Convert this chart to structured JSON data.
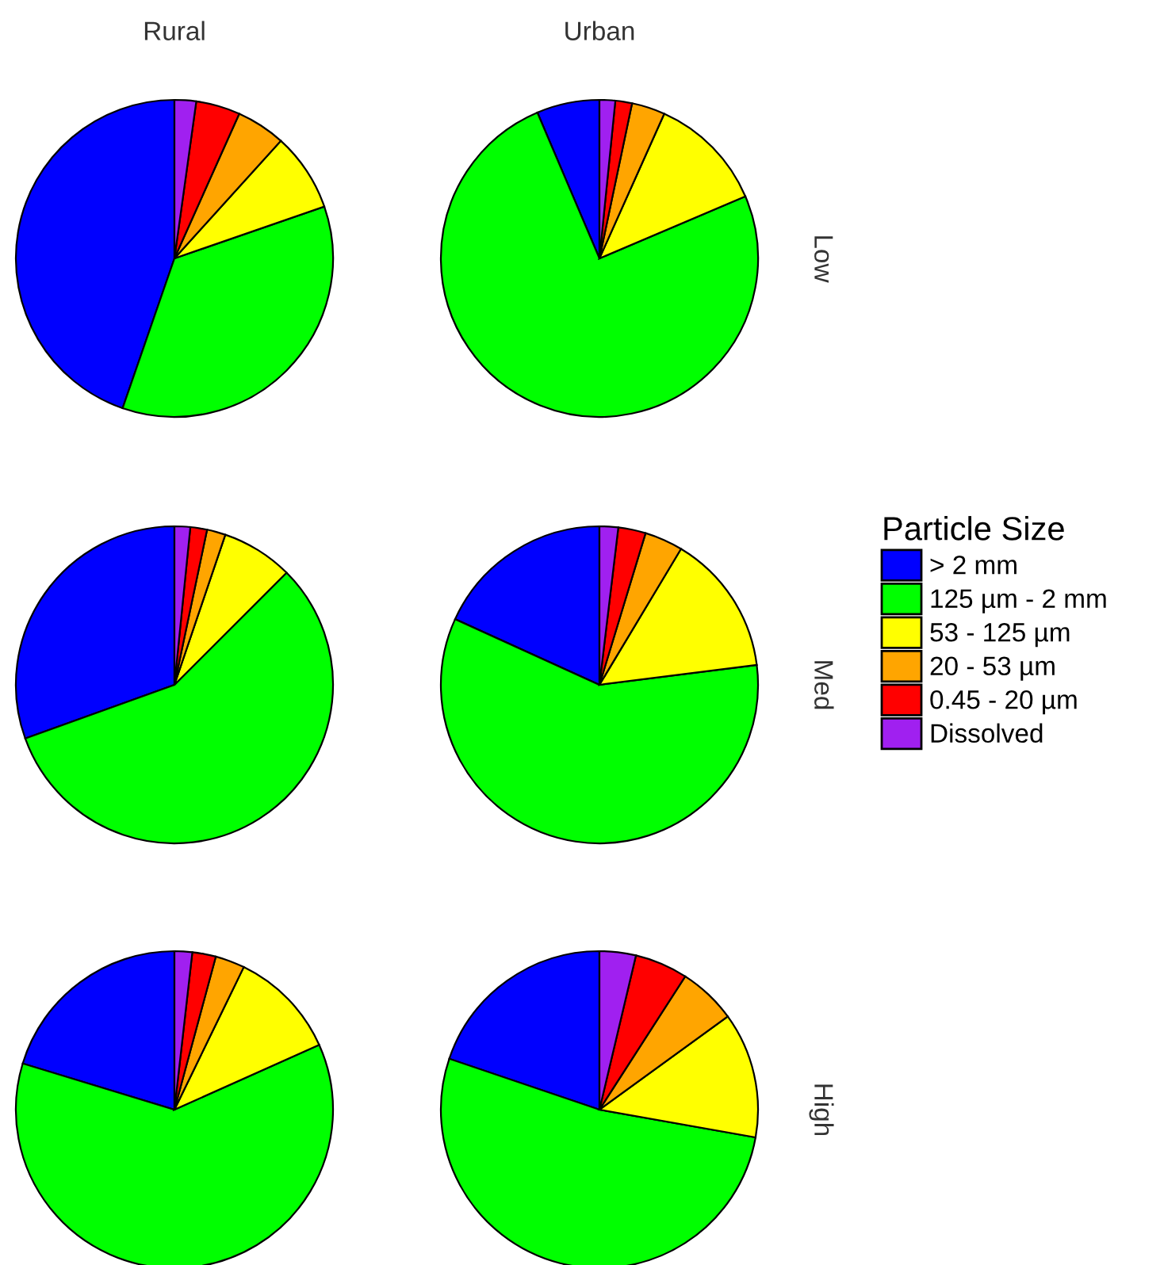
{
  "chart_data": [
    {
      "type": "pie",
      "title": "Rural",
      "legend_title": "Particle Size",
      "categories": [
        "> 2 mm",
        "125 µm - 2 mm",
        "53 - 125 µm",
        "20 - 53 µm",
        "0.45 - 20 µm",
        "Dissolved"
      ],
      "values": [
        44.7,
        35.6,
        8.0,
        5.0,
        4.5,
        2.2
      ],
      "colors": [
        "#0000ff",
        "#00ff00",
        "#ffff00",
        "#ffa500",
        "#ff0000",
        "#a020f0"
      ],
      "legend": "right"
    },
    {
      "type": "pie",
      "title": "Urban",
      "annotations": [
        "Low"
      ],
      "values": [
        6.4,
        75.0,
        11.9,
        3.4,
        1.7,
        1.6
      ],
      "colors": [
        "#0000ff",
        "#00ff00",
        "#ffff00",
        "#ffa500",
        "#ff0000",
        "#a020f0"
      ]
    },
    {
      "type": "pie",
      "values": [
        30.5,
        57.0,
        7.3,
        1.9,
        1.7,
        1.6
      ],
      "colors": [
        "#0000ff",
        "#00ff00",
        "#ffff00",
        "#ffa500",
        "#ff0000",
        "#a020f0"
      ]
    },
    {
      "type": "pie",
      "annotations": [
        "Med"
      ],
      "values": [
        18.2,
        58.8,
        14.4,
        3.9,
        2.8,
        1.9
      ],
      "colors": [
        "#0000ff",
        "#00ff00",
        "#ffff00",
        "#ffa500",
        "#ff0000",
        "#a020f0"
      ]
    },
    {
      "type": "pie",
      "values": [
        20.3,
        61.4,
        11.1,
        3.0,
        2.4,
        1.8
      ],
      "colors": [
        "#0000ff",
        "#00ff00",
        "#ffff00",
        "#ffa500",
        "#ff0000",
        "#a020f0"
      ]
    },
    {
      "type": "pie",
      "annotations": [
        "High"
      ],
      "values": [
        19.8,
        52.4,
        12.8,
        5.9,
        5.4,
        3.7
      ],
      "colors": [
        "#0000ff",
        "#00ff00",
        "#ffff00",
        "#ffa500",
        "#ff0000",
        "#a020f0"
      ]
    }
  ]
}
